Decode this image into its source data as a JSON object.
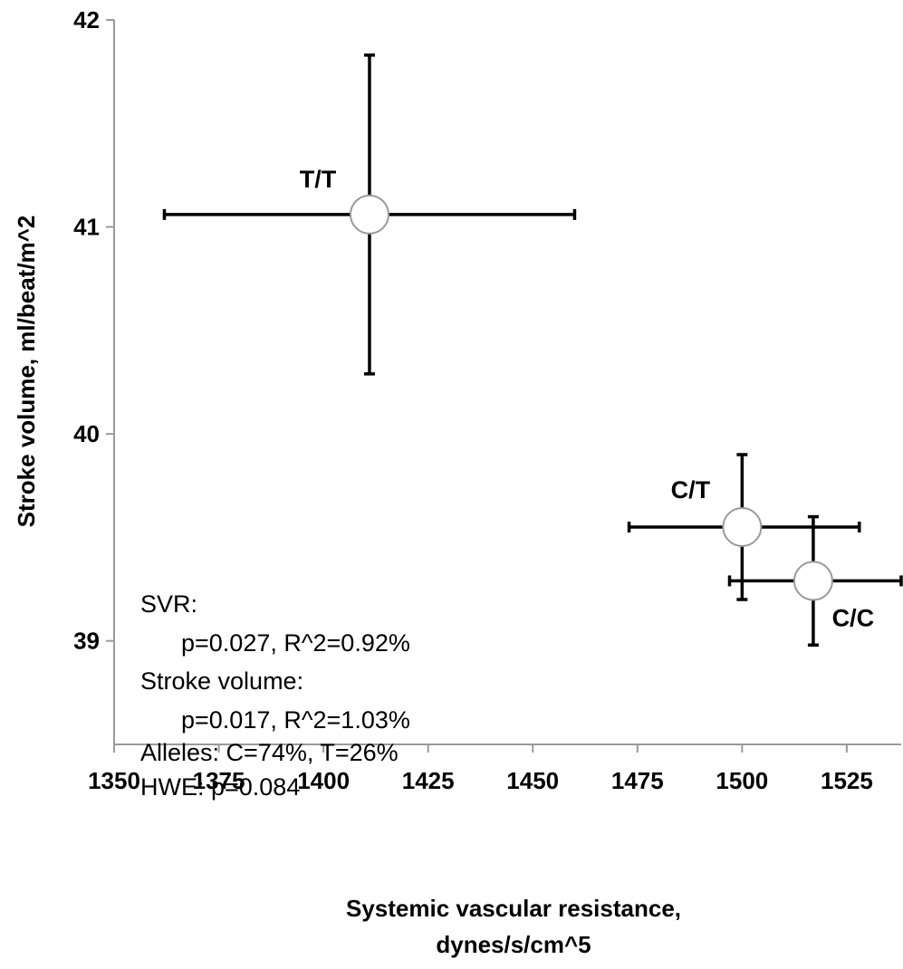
{
  "chart_data": {
    "type": "scatter",
    "title": "",
    "xlabel": [
      "Systemic vascular resistance,",
      "dynes/s/cm^5"
    ],
    "ylabel": "Stroke volume, ml/beat/m^2",
    "xlim": [
      1350,
      1538
    ],
    "ylim": [
      38.5,
      42
    ],
    "x_ticks": [
      1350,
      1375,
      1400,
      1425,
      1450,
      1475,
      1500,
      1525
    ],
    "y_ticks": [
      39,
      40,
      41,
      42
    ],
    "grid": false,
    "points": [
      {
        "label": "T/T",
        "x": 1411,
        "y": 41.06,
        "x_err": [
          1362,
          1460
        ],
        "y_err": [
          40.29,
          41.83
        ]
      },
      {
        "label": "C/T",
        "x": 1500,
        "y": 39.55,
        "x_err": [
          1473,
          1528
        ],
        "y_err": [
          39.2,
          39.9
        ]
      },
      {
        "label": "C/C",
        "x": 1517,
        "y": 39.29,
        "x_err": [
          1497,
          1538
        ],
        "y_err": [
          38.98,
          39.6
        ]
      }
    ],
    "annotations": [
      "SVR:",
      "p=0.027, R^2=0.92%",
      "Stroke volume:",
      "p=0.017, R^2=1.03%",
      "Alleles: C=74%, T=26%",
      "HWE: p=0.084"
    ]
  }
}
